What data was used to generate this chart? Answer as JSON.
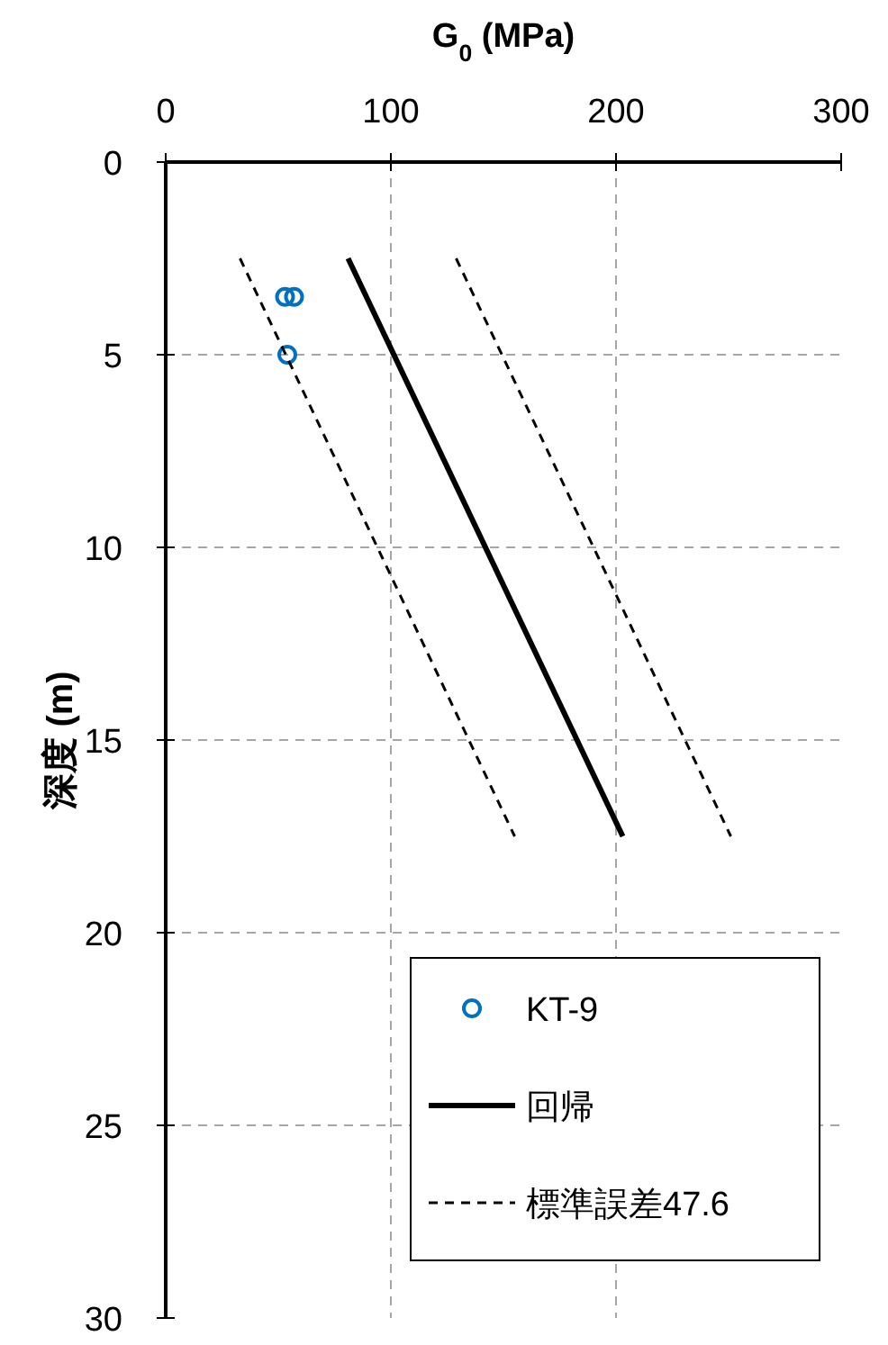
{
  "chart_data": {
    "type": "scatter",
    "xlabel": "G$_{0}$ (MPa)",
    "ylabel": "深度 (m)",
    "xlim": [
      0,
      300
    ],
    "xticks": [
      0,
      100,
      200,
      300
    ],
    "ylim": [
      30,
      0
    ],
    "yticks": [
      0,
      5,
      10,
      15,
      20,
      25,
      30
    ],
    "grid": true,
    "legend": "bottom right",
    "series": [
      {
        "name": "KT-9",
        "color": "#0070c0",
        "marker": "circle",
        "x": [
          53,
          57,
          54
        ],
        "values": [
          3.5,
          3.5,
          5.0
        ]
      },
      {
        "name": "回帰",
        "type": "line",
        "color": "#000000",
        "line_style": "solid",
        "x": [
          81,
          203
        ],
        "values": [
          2.5,
          17.5
        ]
      },
      {
        "name": "標準誤差47.6",
        "type": "line",
        "color": "#000000",
        "line_style": "dashed",
        "x": [
          33,
          155
        ],
        "values": [
          2.5,
          17.5
        ]
      },
      {
        "type": "line",
        "color": "#000000",
        "line_style": "dashed",
        "x": [
          129,
          251
        ],
        "values": [
          2.5,
          17.5
        ]
      }
    ]
  }
}
